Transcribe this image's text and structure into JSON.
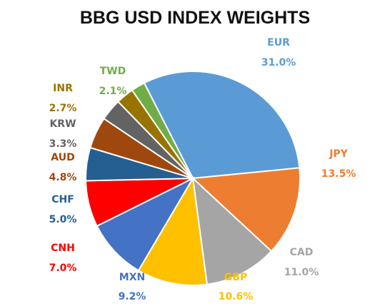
{
  "chart_data": {
    "type": "pie",
    "title": "BBG USD INDEX WEIGHTS",
    "categories": [
      "EUR",
      "JPY",
      "CAD",
      "GBP",
      "MXN",
      "CNH",
      "CHF",
      "AUD",
      "KRW",
      "INR",
      "TWD"
    ],
    "values": [
      31.0,
      13.5,
      11.0,
      10.6,
      9.2,
      7.0,
      5.0,
      4.8,
      3.3,
      2.7,
      2.1
    ],
    "value_labels": [
      "31.0%",
      "13.5%",
      "11.0%",
      "10.6%",
      "9.2%",
      "7.0%",
      "5.0%",
      "4.8%",
      "3.3%",
      "2.7%",
      "2.1%"
    ],
    "colors": [
      "#5B9BD5",
      "#ED7D31",
      "#A5A5A5",
      "#FFC000",
      "#4472C4",
      "#FF0000",
      "#255E91",
      "#9E480E",
      "#636363",
      "#997300",
      "#70AD47"
    ],
    "start_angle_deg": 333,
    "direction": "clockwise",
    "legend": "none",
    "labels_position": "outside"
  }
}
